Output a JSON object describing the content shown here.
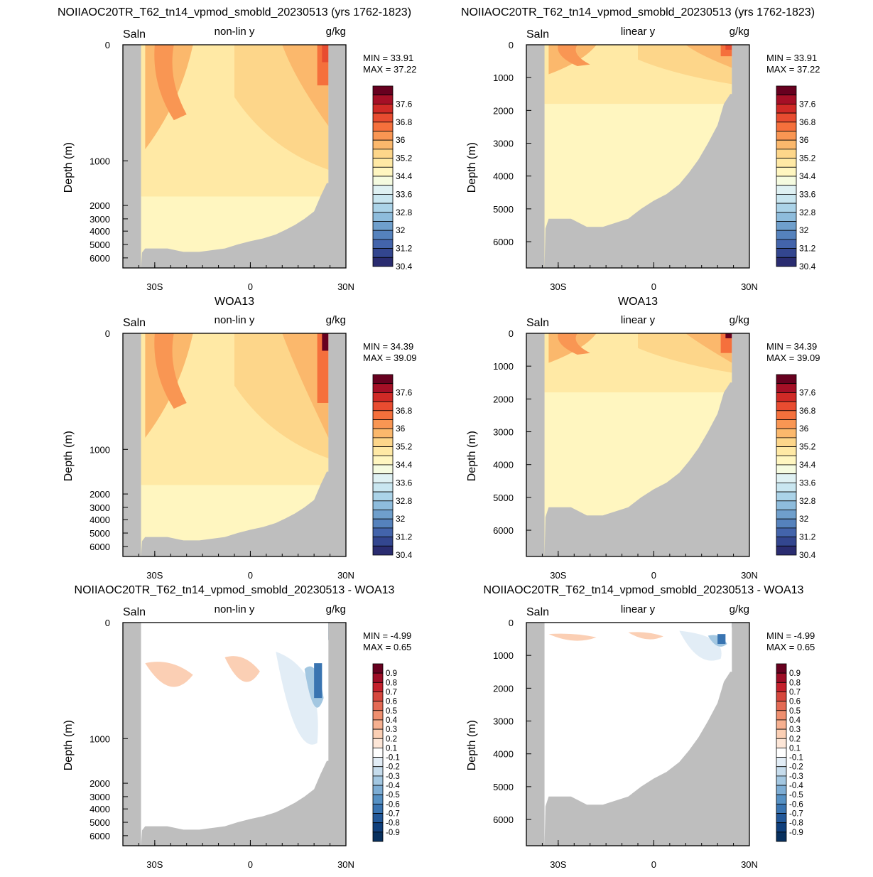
{
  "model_title": "NOIIAOC20TR_T62_tn14_vpmod_smobld_20230513 (yrs 1762-1823)",
  "obs_title": "WOA13",
  "diff_title": "NOIIAOC20TR_T62_tn14_vpmod_smobld_20230513 - WOA13",
  "colors": {
    "land": "#bebebe",
    "frame": "#000000"
  },
  "chart_data": [
    {
      "type": "heatmap",
      "id": "model-nonlin",
      "title": "NOIIAOC20TR_T62_tn14_vpmod_smobld_20230513 (yrs 1762-1823)",
      "left_label": "Saln",
      "center_label": "non-lin y",
      "right_label": "g/kg",
      "ylabel": "Depth (m)",
      "y_scale": "non-linear",
      "yticks": [
        "0",
        "1000",
        "2000",
        "3000",
        "4000",
        "5000",
        "6000"
      ],
      "xticks": [
        "30S",
        "0",
        "30N"
      ],
      "min_text": "MIN =  33.91",
      "max_text": "MAX =  37.22",
      "colorbar": "salinity"
    },
    {
      "type": "heatmap",
      "id": "model-lin",
      "title": "NOIIAOC20TR_T62_tn14_vpmod_smobld_20230513 (yrs 1762-1823)",
      "left_label": "Saln",
      "center_label": "linear y",
      "right_label": "g/kg",
      "ylabel": "Depth (m)",
      "y_scale": "linear",
      "yticks": [
        "0",
        "1000",
        "2000",
        "3000",
        "4000",
        "5000",
        "6000"
      ],
      "xticks": [
        "30S",
        "0",
        "30N"
      ],
      "min_text": "MIN =  33.91",
      "max_text": "MAX =  37.22",
      "colorbar": "salinity"
    },
    {
      "type": "heatmap",
      "id": "obs-nonlin",
      "title": "WOA13",
      "left_label": "Saln",
      "center_label": "non-lin y",
      "right_label": "g/kg",
      "ylabel": "Depth (m)",
      "y_scale": "non-linear",
      "yticks": [
        "0",
        "1000",
        "2000",
        "3000",
        "4000",
        "5000",
        "6000"
      ],
      "xticks": [
        "30S",
        "0",
        "30N"
      ],
      "min_text": "MIN =  34.39",
      "max_text": "MAX =  39.09",
      "colorbar": "salinity"
    },
    {
      "type": "heatmap",
      "id": "obs-lin",
      "title": "WOA13",
      "left_label": "Saln",
      "center_label": "linear y",
      "right_label": "g/kg",
      "ylabel": "Depth (m)",
      "y_scale": "linear",
      "yticks": [
        "0",
        "1000",
        "2000",
        "3000",
        "4000",
        "5000",
        "6000"
      ],
      "xticks": [
        "30S",
        "0",
        "30N"
      ],
      "min_text": "MIN =  34.39",
      "max_text": "MAX =  39.09",
      "colorbar": "salinity"
    },
    {
      "type": "heatmap",
      "id": "diff-nonlin",
      "title": "NOIIAOC20TR_T62_tn14_vpmod_smobld_20230513 - WOA13",
      "left_label": "Saln",
      "center_label": "non-lin y",
      "right_label": "g/kg",
      "ylabel": "Depth (m)",
      "y_scale": "non-linear",
      "yticks": [
        "0",
        "1000",
        "2000",
        "3000",
        "4000",
        "5000",
        "6000"
      ],
      "xticks": [
        "30S",
        "0",
        "30N"
      ],
      "min_text": "MIN =  -4.99",
      "max_text": "MAX =   0.65",
      "colorbar": "difference"
    },
    {
      "type": "heatmap",
      "id": "diff-lin",
      "title": "NOIIAOC20TR_T62_tn14_vpmod_smobld_20230513 - WOA13",
      "left_label": "Saln",
      "center_label": "linear y",
      "right_label": "g/kg",
      "ylabel": "Depth (m)",
      "y_scale": "linear",
      "yticks": [
        "0",
        "1000",
        "2000",
        "3000",
        "4000",
        "5000",
        "6000"
      ],
      "xticks": [
        "30S",
        "0",
        "30N"
      ],
      "min_text": "MIN =  -4.99",
      "max_text": "MAX =   0.65",
      "colorbar": "difference"
    }
  ],
  "colorbars": {
    "salinity": {
      "labels": [
        "37.6",
        "36.8",
        "36",
        "35.2",
        "34.4",
        "33.6",
        "32.8",
        "32",
        "31.2",
        "30.4"
      ],
      "colors": [
        "#67001f",
        "#a50f26",
        "#d02a26",
        "#e84c30",
        "#f5703c",
        "#f99653",
        "#fbb86c",
        "#fdd68a",
        "#ffe9a5",
        "#fff6c0",
        "#f5fbe0",
        "#dff1f3",
        "#c9e6f0",
        "#abd3e8",
        "#8ebcdc",
        "#6f9fcc",
        "#5582bd",
        "#4364ab",
        "#33468f",
        "#2a2c70"
      ]
    },
    "difference": {
      "labels": [
        "0.9",
        "0.8",
        "0.7",
        "0.6",
        "0.5",
        "0.4",
        "0.3",
        "0.2",
        "0.1",
        "-0.1",
        "-0.2",
        "-0.3",
        "-0.4",
        "-0.5",
        "-0.6",
        "-0.7",
        "-0.8",
        "-0.9"
      ],
      "colors": [
        "#67001f",
        "#9e0d26",
        "#c4212c",
        "#d6473d",
        "#e46a54",
        "#ef8f6f",
        "#f6b090",
        "#fbcfb4",
        "#fde6d7",
        "#ffffff",
        "#e2edf6",
        "#c6dcec",
        "#a3c7e1",
        "#7dadd4",
        "#5691c4",
        "#3974b1",
        "#225899",
        "#0f3f7c",
        "#08305e"
      ]
    }
  }
}
